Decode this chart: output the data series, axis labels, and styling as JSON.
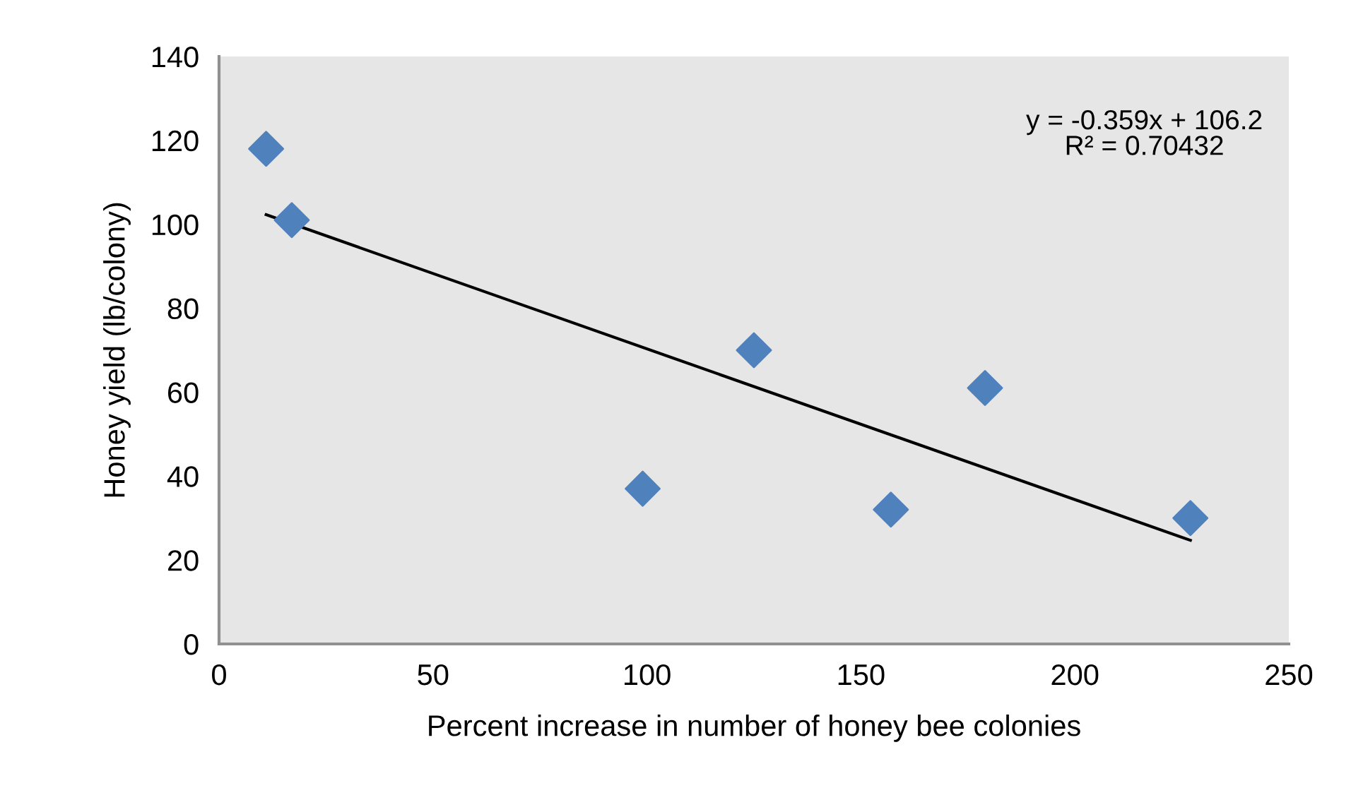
{
  "chart_data": {
    "type": "scatter",
    "xlabel": "Percent increase in number of honey bee colonies",
    "ylabel": "Honey yield (lb/colony)",
    "xlim": [
      0,
      250
    ],
    "xticks": [
      0,
      50,
      100,
      150,
      200,
      250
    ],
    "ylim": [
      0,
      140
    ],
    "yticks": [
      0,
      20,
      40,
      60,
      80,
      100,
      120,
      140
    ],
    "grid": false,
    "legend": false,
    "series": [
      {
        "marker": "diamond",
        "color": "#4f81bd",
        "x": [
          11,
          17,
          99,
          125,
          157,
          179,
          227
        ],
        "values": [
          118,
          101,
          37,
          70,
          32,
          61,
          30
        ]
      },
      {
        "type": "line",
        "marker": "none",
        "color": "#000000",
        "x": [
          11,
          227
        ],
        "values": [
          102.3,
          24.7
        ]
      }
    ],
    "annotations": [
      "y = -0.359x + 106.2\nR² = 0.70432"
    ]
  }
}
